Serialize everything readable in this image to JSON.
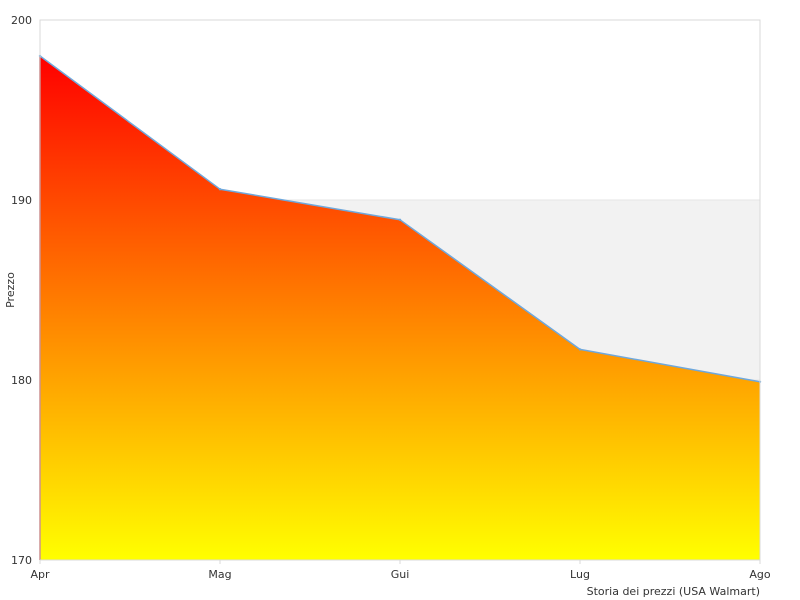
{
  "chart_data": {
    "type": "area",
    "title": "",
    "xlabel": "Storia dei prezzi (USA Walmart)",
    "ylabel": "Prezzo",
    "categories": [
      "Apr",
      "Mag",
      "Gui",
      "Lug",
      "Ago"
    ],
    "series": [
      {
        "values": [
          198.0,
          190.6,
          188.9,
          181.7,
          179.9
        ]
      }
    ],
    "ylim": [
      170,
      200
    ],
    "yticks": [
      170,
      180,
      190,
      200
    ],
    "grid": "horizontal bands",
    "legend": "none",
    "colors": {
      "fill_top": "#ff0000",
      "fill_bottom": "#ffff00",
      "line": "#6fa8dc",
      "band": "#f2f2f2",
      "frame": "#d9d9d9"
    }
  }
}
